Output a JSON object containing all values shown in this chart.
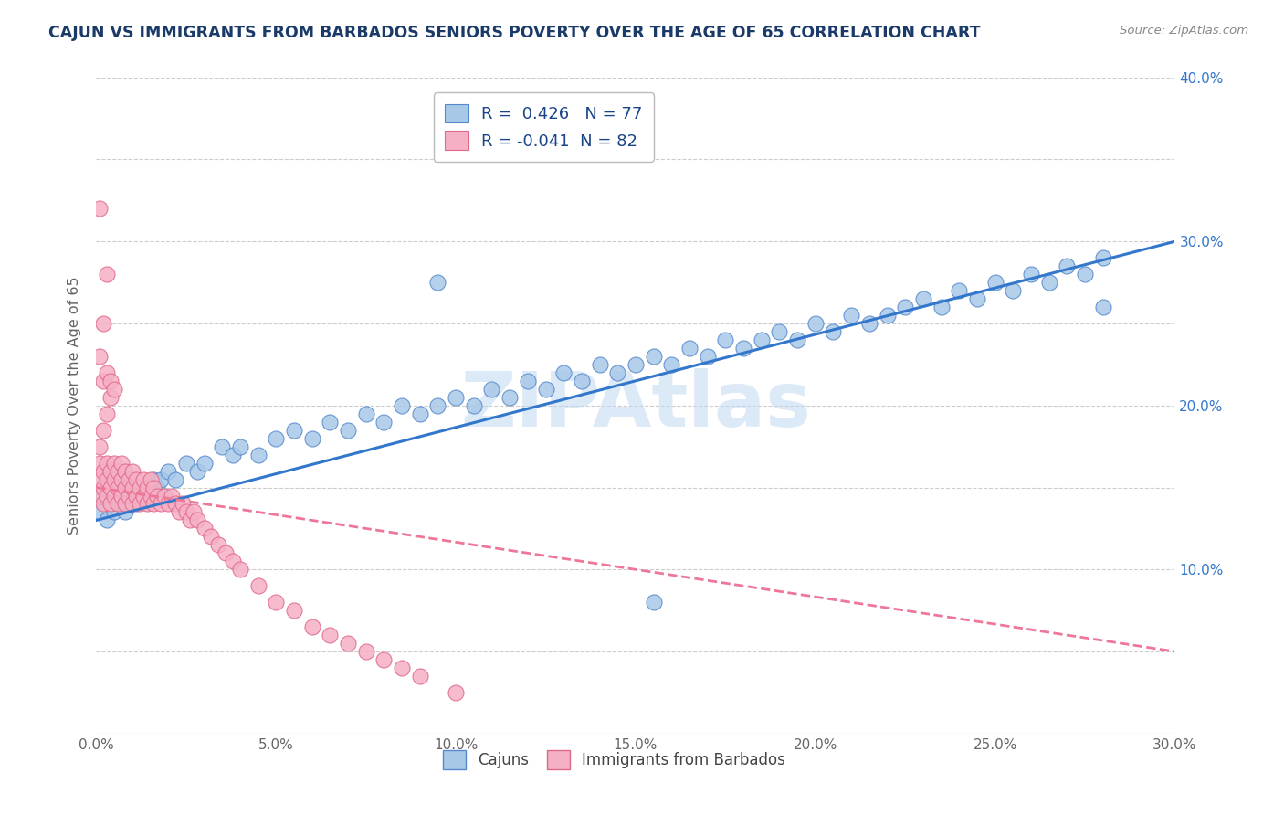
{
  "title": "CAJUN VS IMMIGRANTS FROM BARBADOS SENIORS POVERTY OVER THE AGE OF 65 CORRELATION CHART",
  "source_text": "Source: ZipAtlas.com",
  "ylabel": "Seniors Poverty Over the Age of 65",
  "xlim": [
    0.0,
    0.3
  ],
  "ylim": [
    0.0,
    0.4
  ],
  "xticks": [
    0.0,
    0.05,
    0.1,
    0.15,
    0.2,
    0.25,
    0.3
  ],
  "xticklabels": [
    "0.0%",
    "5.0%",
    "10.0%",
    "15.0%",
    "20.0%",
    "25.0%",
    "30.0%"
  ],
  "yticks_left": [],
  "yticks_right": [
    0.1,
    0.2,
    0.3,
    0.4
  ],
  "yticklabels_right": [
    "10.0%",
    "20.0%",
    "30.0%",
    "40.0%"
  ],
  "grid_yticks": [
    0.05,
    0.1,
    0.15,
    0.2,
    0.25,
    0.3,
    0.35,
    0.4
  ],
  "cajun_color": "#a8c8e8",
  "cajun_edge_color": "#5588cc",
  "barbados_color": "#f5b0c5",
  "barbados_edge_color": "#e06888",
  "trend_cajun_color": "#3377cc",
  "trend_barbados_color": "#ee7799",
  "R_cajun": 0.426,
  "N_cajun": 77,
  "R_barbados": -0.041,
  "N_barbados": 82,
  "watermark": "ZIPAtlas",
  "watermark_color": "#c0d8f0",
  "title_color": "#1a3a6a",
  "source_color": "#888888",
  "legend_label_cajun": "Cajuns",
  "legend_label_barbados": "Immigrants from Barbados",
  "cajun_x": [
    0.001,
    0.002,
    0.003,
    0.004,
    0.005,
    0.006,
    0.007,
    0.008,
    0.009,
    0.01,
    0.011,
    0.012,
    0.013,
    0.014,
    0.015,
    0.016,
    0.017,
    0.018,
    0.02,
    0.022,
    0.025,
    0.028,
    0.03,
    0.035,
    0.038,
    0.04,
    0.045,
    0.05,
    0.055,
    0.06,
    0.065,
    0.07,
    0.075,
    0.08,
    0.085,
    0.09,
    0.095,
    0.1,
    0.105,
    0.11,
    0.115,
    0.12,
    0.125,
    0.13,
    0.135,
    0.14,
    0.145,
    0.15,
    0.155,
    0.16,
    0.165,
    0.17,
    0.175,
    0.18,
    0.185,
    0.19,
    0.195,
    0.2,
    0.205,
    0.21,
    0.215,
    0.22,
    0.225,
    0.23,
    0.235,
    0.24,
    0.245,
    0.25,
    0.255,
    0.26,
    0.265,
    0.27,
    0.275,
    0.28,
    0.095,
    0.155,
    0.28
  ],
  "cajun_y": [
    0.135,
    0.145,
    0.13,
    0.14,
    0.135,
    0.145,
    0.14,
    0.135,
    0.14,
    0.145,
    0.14,
    0.15,
    0.145,
    0.15,
    0.145,
    0.155,
    0.15,
    0.155,
    0.16,
    0.155,
    0.165,
    0.16,
    0.165,
    0.175,
    0.17,
    0.175,
    0.17,
    0.18,
    0.185,
    0.18,
    0.19,
    0.185,
    0.195,
    0.19,
    0.2,
    0.195,
    0.2,
    0.205,
    0.2,
    0.21,
    0.205,
    0.215,
    0.21,
    0.22,
    0.215,
    0.225,
    0.22,
    0.225,
    0.23,
    0.225,
    0.235,
    0.23,
    0.24,
    0.235,
    0.24,
    0.245,
    0.24,
    0.25,
    0.245,
    0.255,
    0.25,
    0.255,
    0.26,
    0.265,
    0.26,
    0.27,
    0.265,
    0.275,
    0.27,
    0.28,
    0.275,
    0.285,
    0.28,
    0.29,
    0.275,
    0.08,
    0.26
  ],
  "barbados_x": [
    0.001,
    0.001,
    0.001,
    0.002,
    0.002,
    0.002,
    0.003,
    0.003,
    0.003,
    0.004,
    0.004,
    0.004,
    0.005,
    0.005,
    0.005,
    0.006,
    0.006,
    0.006,
    0.007,
    0.007,
    0.007,
    0.008,
    0.008,
    0.008,
    0.009,
    0.009,
    0.01,
    0.01,
    0.01,
    0.011,
    0.011,
    0.012,
    0.012,
    0.013,
    0.013,
    0.014,
    0.014,
    0.015,
    0.015,
    0.016,
    0.016,
    0.017,
    0.018,
    0.019,
    0.02,
    0.021,
    0.022,
    0.023,
    0.024,
    0.025,
    0.026,
    0.027,
    0.028,
    0.03,
    0.032,
    0.034,
    0.036,
    0.038,
    0.04,
    0.045,
    0.05,
    0.055,
    0.06,
    0.065,
    0.07,
    0.075,
    0.08,
    0.085,
    0.09,
    0.1,
    0.001,
    0.002,
    0.003,
    0.004,
    0.002,
    0.003,
    0.004,
    0.005,
    0.001,
    0.002,
    0.003,
    0.001
  ],
  "barbados_y": [
    0.155,
    0.145,
    0.165,
    0.15,
    0.16,
    0.14,
    0.145,
    0.155,
    0.165,
    0.14,
    0.15,
    0.16,
    0.145,
    0.155,
    0.165,
    0.14,
    0.15,
    0.16,
    0.145,
    0.155,
    0.165,
    0.14,
    0.15,
    0.16,
    0.145,
    0.155,
    0.14,
    0.15,
    0.16,
    0.145,
    0.155,
    0.14,
    0.15,
    0.145,
    0.155,
    0.14,
    0.15,
    0.145,
    0.155,
    0.14,
    0.15,
    0.145,
    0.14,
    0.145,
    0.14,
    0.145,
    0.14,
    0.135,
    0.14,
    0.135,
    0.13,
    0.135,
    0.13,
    0.125,
    0.12,
    0.115,
    0.11,
    0.105,
    0.1,
    0.09,
    0.08,
    0.075,
    0.065,
    0.06,
    0.055,
    0.05,
    0.045,
    0.04,
    0.035,
    0.025,
    0.175,
    0.185,
    0.195,
    0.205,
    0.215,
    0.22,
    0.215,
    0.21,
    0.23,
    0.25,
    0.28,
    0.32
  ]
}
